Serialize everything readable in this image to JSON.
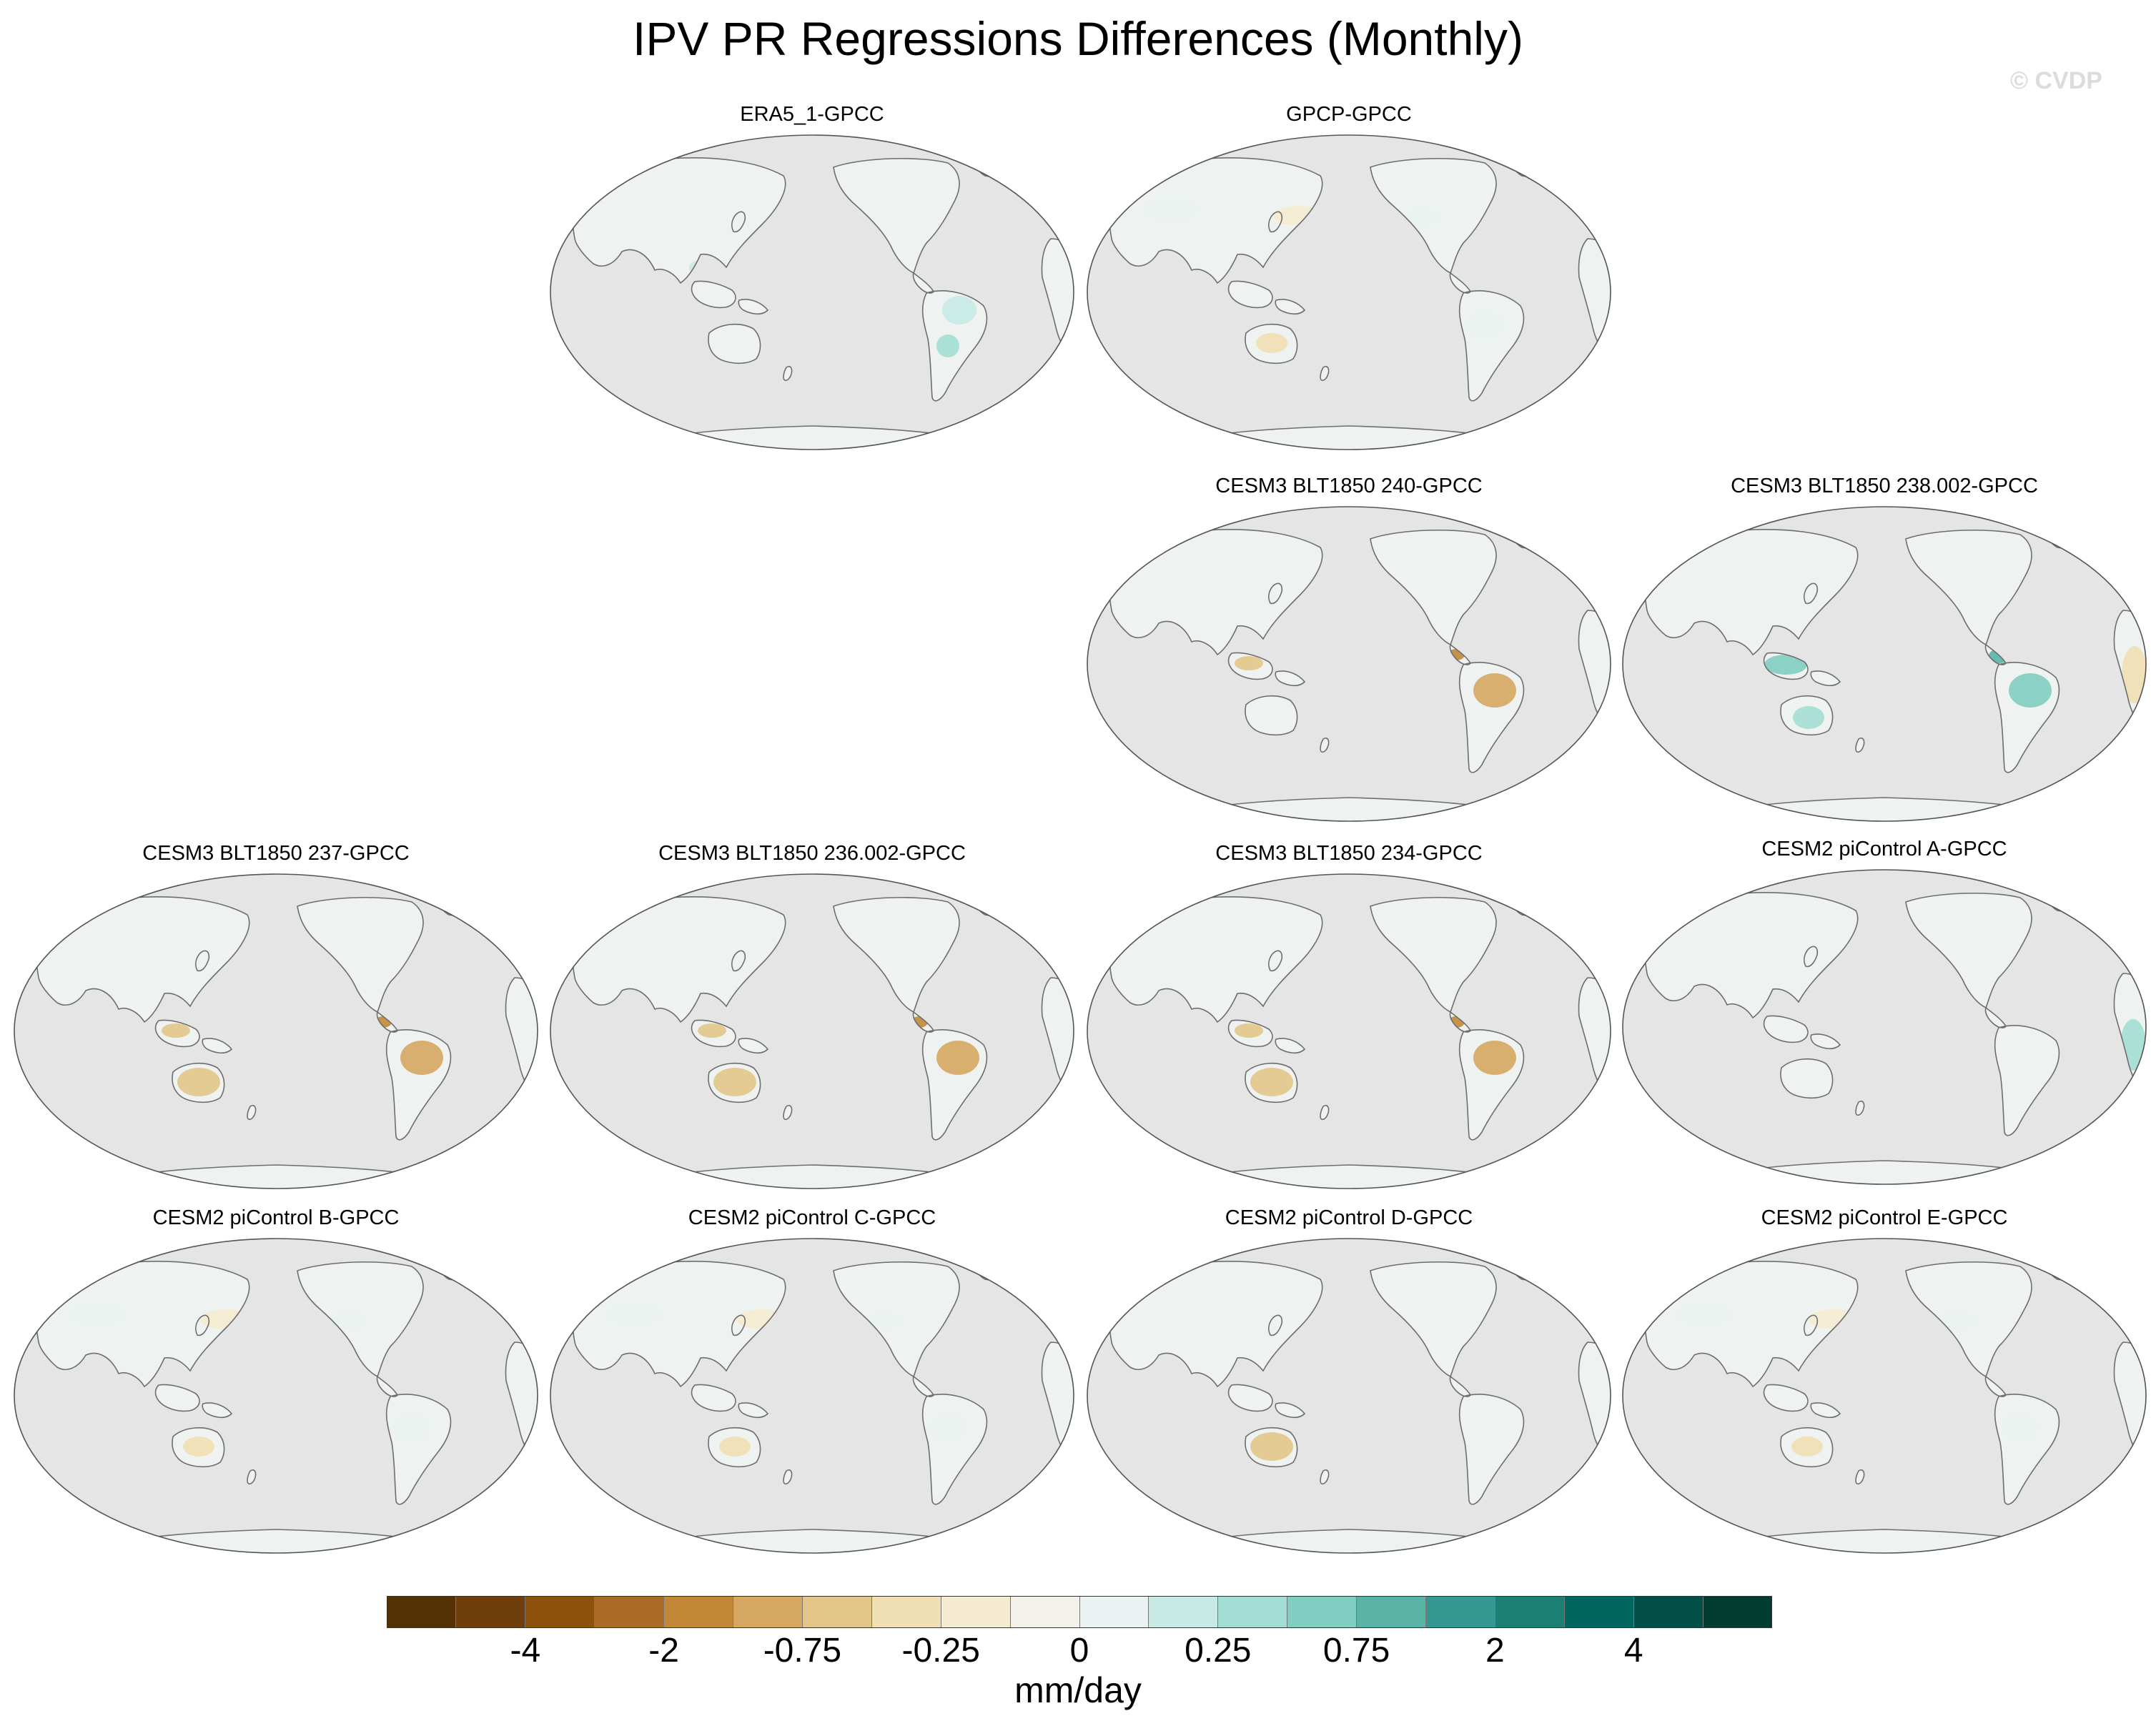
{
  "title": "IPV PR Regressions Differences (Monthly)",
  "watermark": "© CVDP",
  "map": {
    "projection": "Robinson, Pacific-centered",
    "colors": {
      "ocean": "#e5e5e5",
      "land_base": "#eef3f1",
      "coast": "#6e6e6e",
      "frame": "#555555"
    }
  },
  "panels": [
    {
      "id": "era5",
      "title": "ERA5_1-GPCC",
      "anomalies": [
        "wet-tropics"
      ]
    },
    {
      "id": "gpcp",
      "title": "GPCP-GPCC",
      "anomalies": [
        "mild"
      ]
    },
    {
      "id": "b240",
      "title": "CESM3 BLT1850 240-GPCC",
      "anomalies": [
        "dry-amazon"
      ]
    },
    {
      "id": "b238",
      "title": "CESM3 BLT1850 238.002-GPCC",
      "anomalies": [
        "wet-maritime",
        "wet-amazon"
      ]
    },
    {
      "id": "b237",
      "title": "CESM3 BLT1850 237-GPCC",
      "anomalies": [
        "dry-amazon",
        "dry-australia"
      ]
    },
    {
      "id": "b236",
      "title": "CESM3 BLT1850 236.002-GPCC",
      "anomalies": [
        "dry-amazon",
        "dry-australia"
      ]
    },
    {
      "id": "b234",
      "title": "CESM3 BLT1850 234-GPCC",
      "anomalies": [
        "dry-amazon",
        "dry-australia"
      ]
    },
    {
      "id": "pia",
      "title": "CESM2 piControl A-GPCC",
      "anomalies": [
        "wet-africa"
      ]
    },
    {
      "id": "pib",
      "title": "CESM2 piControl B-GPCC",
      "anomalies": [
        "mild"
      ]
    },
    {
      "id": "pic",
      "title": "CESM2 piControl C-GPCC",
      "anomalies": [
        "mild"
      ]
    },
    {
      "id": "pid",
      "title": "CESM2 piControl D-GPCC",
      "anomalies": [
        "dry-australia"
      ]
    },
    {
      "id": "pie",
      "title": "CESM2 piControl E-GPCC",
      "anomalies": [
        "mild"
      ]
    }
  ],
  "colorbar": {
    "units": "mm/day",
    "colors": [
      "#543005",
      "#6e3f0d",
      "#8c510a",
      "#a96a25",
      "#c28838",
      "#d5a760",
      "#e2c588",
      "#efdfb2",
      "#f5ebd0",
      "#f4f1ea",
      "#eaf3f1",
      "#c7eae5",
      "#a3ded4",
      "#80cdc1",
      "#5ab4a6",
      "#35978f",
      "#1c7f73",
      "#01665e",
      "#014f46",
      "#003c30"
    ],
    "labels": [
      {
        "text": "-4",
        "boundary": 2
      },
      {
        "text": "-2",
        "boundary": 4
      },
      {
        "text": "-0.75",
        "boundary": 6
      },
      {
        "text": "-0.25",
        "boundary": 8
      },
      {
        "text": "0",
        "boundary": 10
      },
      {
        "text": "0.25",
        "boundary": 12
      },
      {
        "text": "0.75",
        "boundary": 14
      },
      {
        "text": "2",
        "boundary": 16
      },
      {
        "text": "4",
        "boundary": 18
      }
    ]
  }
}
